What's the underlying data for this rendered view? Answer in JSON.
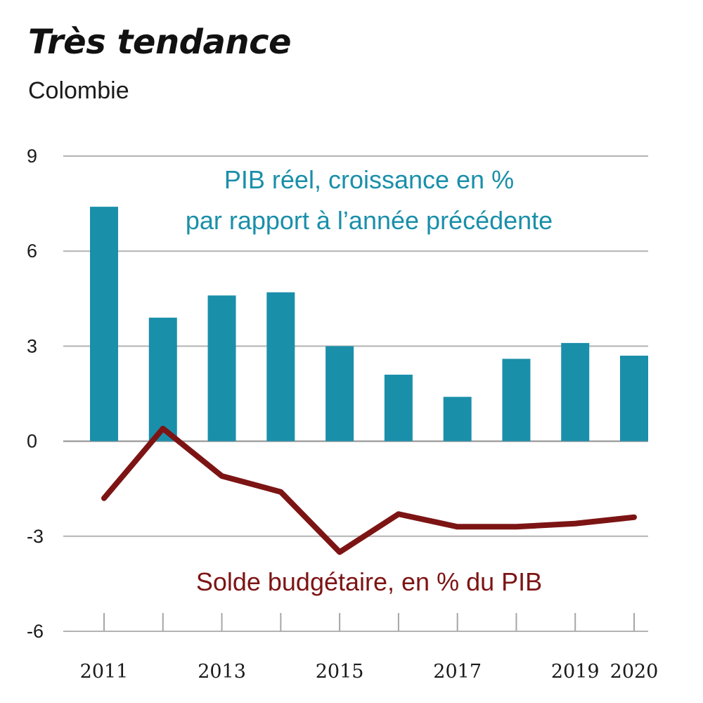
{
  "header": {
    "title": "Très tendance",
    "subtitle": "Colombie"
  },
  "chart_data": {
    "type": "bar+line",
    "title": "Très tendance",
    "subtitle": "Colombie",
    "ylim": [
      -6,
      9
    ],
    "yticks": [
      "9",
      "6",
      "3",
      "0",
      "-3",
      "-6"
    ],
    "ytick_values": [
      9,
      6,
      3,
      0,
      -3,
      -6
    ],
    "grid": true,
    "x": [
      2011,
      2012,
      2013,
      2014,
      2015,
      2016,
      2017,
      2018,
      2019,
      2020
    ],
    "xtick_labels": [
      "2011",
      "",
      "2013",
      "",
      "2015",
      "",
      "2017",
      "",
      "2019",
      "2020"
    ],
    "series": [
      {
        "name": "PIB réel, croissance en % par rapport à l’année précédente",
        "label_lines": [
          "PIB réel, croissance en %",
          "par rapport à l’année précédente"
        ],
        "type": "bar",
        "color": "#1a8faa",
        "values": [
          7.4,
          3.9,
          4.6,
          4.7,
          3.0,
          2.1,
          1.4,
          2.6,
          3.1,
          2.7
        ]
      },
      {
        "name": "Solde budgétaire, en % du PIB",
        "label_lines": [
          "Solde budgétaire, en % du PIB"
        ],
        "type": "line",
        "color": "#7d1414",
        "values": [
          -1.8,
          0.4,
          -1.1,
          -1.6,
          -3.5,
          -2.3,
          -2.7,
          -2.7,
          -2.6,
          -2.4
        ]
      }
    ]
  }
}
